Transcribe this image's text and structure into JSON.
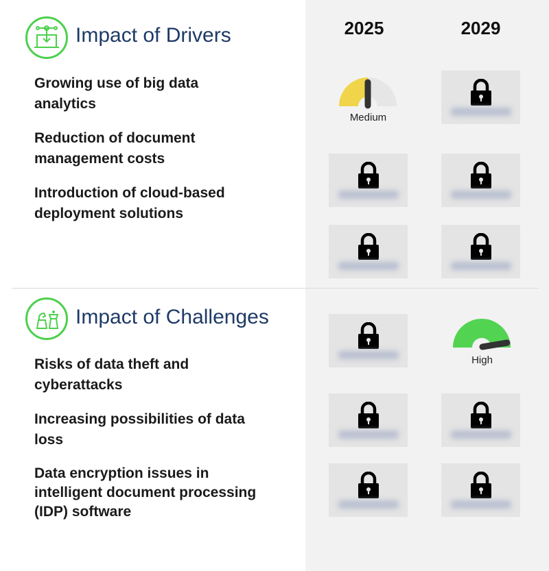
{
  "columns": [
    "2025",
    "2029"
  ],
  "drivers": {
    "title": "Impact of Drivers",
    "items": [
      "Growing use of big data analytics",
      "Reduction of document management costs",
      "Introduction of cloud-based deployment solutions"
    ],
    "ratings": [
      [
        "Medium",
        "locked"
      ],
      [
        "locked",
        "locked"
      ],
      [
        "locked",
        "locked"
      ]
    ]
  },
  "challenges": {
    "title": "Impact of Challenges",
    "items": [
      "Risks of data theft and cyberattacks",
      "Increasing possibilities of data loss",
      "Data encryption issues in intelligent document processing (IDP) software"
    ],
    "ratings": [
      [
        "locked",
        "High"
      ],
      [
        "locked",
        "locked"
      ],
      [
        "locked",
        "locked"
      ]
    ]
  },
  "gauges": {
    "medium": {
      "label": "Medium",
      "color": "#f0d44a",
      "level": 0.5
    },
    "high": {
      "label": "High",
      "color": "#52d452",
      "level": 0.95
    }
  },
  "colors": {
    "title": "#1e3a66",
    "icon": "#4cd04c",
    "panel": "#f2f2f2"
  }
}
